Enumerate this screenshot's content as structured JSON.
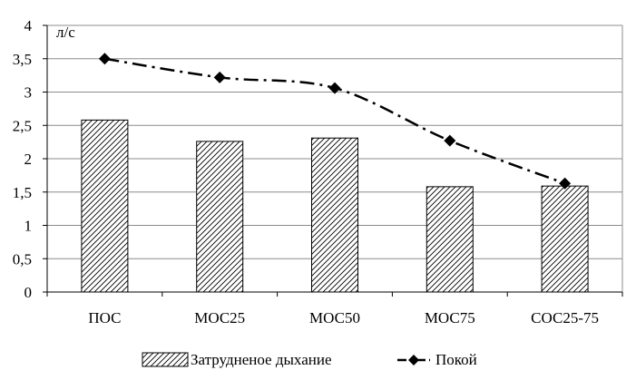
{
  "chart_data": {
    "type": "bar",
    "categories": [
      "ПОС",
      "МОС25",
      "МОС50",
      "МОС75",
      "СОС25-75"
    ],
    "unit_label": "л/с",
    "ylim": [
      0,
      4
    ],
    "y_ticks": [
      "0",
      "0,5",
      "1",
      "1,5",
      "2",
      "2,5",
      "3",
      "3,5",
      "4"
    ],
    "y_tick_values": [
      0,
      0.5,
      1,
      1.5,
      2,
      2.5,
      3,
      3.5,
      4
    ],
    "grid": true,
    "legend_position": "bottom",
    "series": [
      {
        "name": "Затрудненое дыхание",
        "kind": "bar",
        "pattern": "diagonal-hatch",
        "values": [
          2.58,
          2.26,
          2.31,
          1.58,
          1.59
        ]
      },
      {
        "name": "Покой",
        "kind": "line",
        "line_style": "dash-dot",
        "marker": "diamond",
        "values": [
          3.5,
          3.22,
          3.06,
          2.27,
          1.63
        ]
      }
    ]
  }
}
